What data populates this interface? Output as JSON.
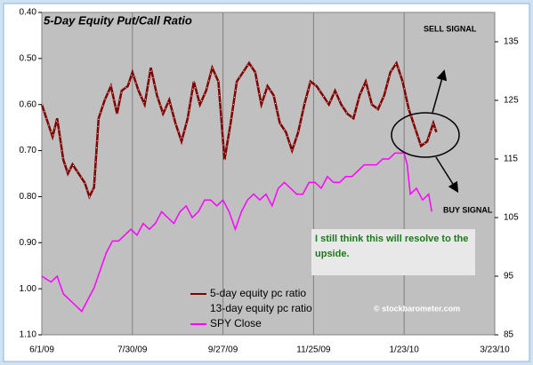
{
  "chart_data": {
    "type": "line",
    "title": "5-Day Equity Put/Call Ratio",
    "annotations": [
      "SELL SIGNAL",
      "BUY SIGNAL",
      "I still think this will resolve to the upside.",
      "© stockbarometer.com"
    ],
    "xlim": [
      0,
      295
    ],
    "xticks": [
      {
        "value": 0,
        "label": "6/1/09"
      },
      {
        "value": 59,
        "label": "7/30/09"
      },
      {
        "value": 118,
        "label": "9/27/09"
      },
      {
        "value": 177,
        "label": "11/25/09"
      },
      {
        "value": 236,
        "label": "1/23/10"
      },
      {
        "value": 295,
        "label": "3/23/10"
      }
    ],
    "ylim": [
      0.4,
      1.1
    ],
    "y_inverted": true,
    "yticks": [
      {
        "value": 0.4,
        "label": "0.40"
      },
      {
        "value": 0.5,
        "label": "0.50"
      },
      {
        "value": 0.6,
        "label": "0.60"
      },
      {
        "value": 0.7,
        "label": "0.70"
      },
      {
        "value": 0.8,
        "label": "0.80"
      },
      {
        "value": 0.9,
        "label": "0.90"
      },
      {
        "value": 1.0,
        "label": "1.00"
      },
      {
        "value": 1.1,
        "label": "1.10"
      }
    ],
    "y2lim": [
      85,
      140
    ],
    "y2ticks": [
      85,
      95,
      105,
      115,
      125,
      135
    ],
    "grid": "x",
    "series": [
      {
        "name": "5-day equity pc ratio",
        "color": "#800000",
        "x": [
          0,
          4,
          7,
          10,
          14,
          17,
          20,
          24,
          28,
          31,
          34,
          37,
          41,
          45,
          49,
          52,
          56,
          59,
          63,
          67,
          71,
          75,
          79,
          83,
          87,
          91,
          95,
          99,
          103,
          107,
          111,
          115,
          119,
          123,
          127,
          131,
          135,
          139,
          143,
          147,
          151,
          155,
          159,
          163,
          167,
          171,
          175,
          179,
          183,
          187,
          191,
          195,
          199,
          203,
          207,
          211,
          215,
          219,
          223,
          227,
          231,
          235,
          239,
          243,
          247,
          251,
          255,
          257
        ],
        "values": [
          0.6,
          0.64,
          0.67,
          0.63,
          0.72,
          0.75,
          0.73,
          0.75,
          0.77,
          0.8,
          0.78,
          0.63,
          0.59,
          0.56,
          0.62,
          0.57,
          0.56,
          0.53,
          0.57,
          0.6,
          0.52,
          0.58,
          0.62,
          0.59,
          0.64,
          0.68,
          0.63,
          0.55,
          0.6,
          0.57,
          0.52,
          0.55,
          0.72,
          0.64,
          0.55,
          0.53,
          0.51,
          0.53,
          0.6,
          0.56,
          0.58,
          0.64,
          0.66,
          0.7,
          0.66,
          0.6,
          0.55,
          0.56,
          0.58,
          0.6,
          0.57,
          0.6,
          0.62,
          0.63,
          0.58,
          0.55,
          0.6,
          0.61,
          0.58,
          0.53,
          0.51,
          0.55,
          0.61,
          0.65,
          0.69,
          0.68,
          0.64,
          0.66
        ]
      },
      {
        "name": "13-day equity pc ratio"
      },
      {
        "name": "SPY Close",
        "color": "#ff00ff",
        "axis": "y2",
        "x": [
          0,
          6,
          10,
          14,
          18,
          22,
          26,
          30,
          34,
          38,
          42,
          46,
          50,
          54,
          58,
          62,
          66,
          70,
          74,
          78,
          82,
          86,
          90,
          94,
          98,
          102,
          106,
          110,
          114,
          118,
          122,
          126,
          130,
          134,
          138,
          142,
          146,
          150,
          154,
          158,
          162,
          166,
          170,
          174,
          178,
          182,
          186,
          190,
          194,
          198,
          202,
          206,
          210,
          214,
          218,
          222,
          226,
          230,
          234,
          236,
          238,
          240,
          244,
          248,
          252,
          254
        ],
        "values": [
          95,
          94,
          95,
          92,
          91,
          90,
          89,
          91,
          93,
          96,
          99,
          101,
          101,
          102,
          103,
          102,
          104,
          103,
          104,
          106,
          105,
          104,
          106,
          107,
          105,
          106,
          108,
          108,
          107,
          108,
          106,
          103,
          106,
          108,
          109,
          108,
          109,
          107,
          110,
          111,
          110,
          109,
          109,
          111,
          111,
          110,
          112,
          111,
          111,
          112,
          112,
          113,
          114,
          114,
          114,
          115,
          115,
          116,
          116,
          116,
          114,
          109,
          110,
          108,
          109,
          106
        ]
      }
    ]
  }
}
